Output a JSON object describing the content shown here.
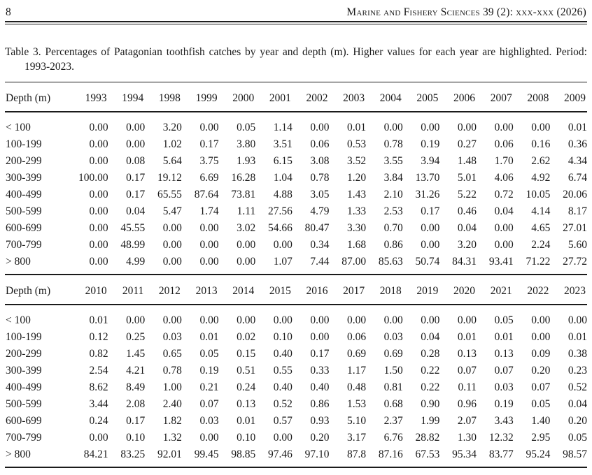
{
  "header": {
    "page_number": "8",
    "journal": "Marine and Fishery Sciences 39 (2): xxx-xxx (2026)"
  },
  "caption": {
    "line1": "Table 3. Percentages of Patagonian toothfish catches by year and depth (m). Higher values for each year are highlighted. Period:",
    "line2": "1993-2023."
  },
  "tables": [
    {
      "columns": [
        "Depth (m)",
        "1993",
        "1994",
        "1998",
        "1999",
        "2000",
        "2001",
        "2002",
        "2003",
        "2004",
        "2005",
        "2006",
        "2007",
        "2008",
        "2009"
      ],
      "rows": [
        {
          "label": "< 100",
          "values": [
            "0.00",
            "0.00",
            "3.20",
            "0.00",
            "0.05",
            "1.14",
            "0.00",
            "0.01",
            "0.00",
            "0.00",
            "0.00",
            "0.00",
            "0.00",
            "0.01"
          ]
        },
        {
          "label": "100-199",
          "values": [
            "0.00",
            "0.00",
            "1.02",
            "0.17",
            "3.80",
            "3.51",
            "0.06",
            "0.53",
            "0.78",
            "0.19",
            "0.27",
            "0.06",
            "0.16",
            "0.36"
          ]
        },
        {
          "label": "200-299",
          "values": [
            "0.00",
            "0.08",
            "5.64",
            "3.75",
            "1.93",
            "6.15",
            "3.08",
            "3.52",
            "3.55",
            "3.94",
            "1.48",
            "1.70",
            "2.62",
            "4.34"
          ]
        },
        {
          "label": "300-399",
          "values": [
            "100.00",
            "0.17",
            "19.12",
            "6.69",
            "16.28",
            "1.04",
            "0.78",
            "1.20",
            "3.84",
            "13.70",
            "5.01",
            "4.06",
            "4.92",
            "6.74"
          ]
        },
        {
          "label": "400-499",
          "values": [
            "0.00",
            "0.17",
            "65.55",
            "87.64",
            "73.81",
            "4.88",
            "3.05",
            "1.43",
            "2.10",
            "31.26",
            "5.22",
            "0.72",
            "10.05",
            "20.06"
          ]
        },
        {
          "label": "500-599",
          "values": [
            "0.00",
            "0.04",
            "5.47",
            "1.74",
            "1.11",
            "27.56",
            "4.79",
            "1.33",
            "2.53",
            "0.17",
            "0.46",
            "0.04",
            "4.14",
            "8.17"
          ]
        },
        {
          "label": "600-699",
          "values": [
            "0.00",
            "45.55",
            "0.00",
            "0.00",
            "3.02",
            "54.66",
            "80.47",
            "3.30",
            "0.70",
            "0.00",
            "0.04",
            "0.00",
            "4.65",
            "27.01"
          ]
        },
        {
          "label": "700-799",
          "values": [
            "0.00",
            "48.99",
            "0.00",
            "0.00",
            "0.00",
            "0.00",
            "0.34",
            "1.68",
            "0.86",
            "0.00",
            "3.20",
            "0.00",
            "2.24",
            "5.60"
          ]
        },
        {
          "label": "> 800",
          "values": [
            "0.00",
            "4.99",
            "0.00",
            "0.00",
            "0.00",
            "1.07",
            "7.44",
            "87.00",
            "85.63",
            "50.74",
            "84.31",
            "93.41",
            "71.22",
            "27.72"
          ]
        }
      ]
    },
    {
      "columns": [
        "Depth (m)",
        "2010",
        "2011",
        "2012",
        "2013",
        "2014",
        "2015",
        "2016",
        "2017",
        "2018",
        "2019",
        "2020",
        "2021",
        "2022",
        "2023"
      ],
      "rows": [
        {
          "label": "< 100",
          "values": [
            "0.01",
            "0.00",
            "0.00",
            "0.00",
            "0.00",
            "0.00",
            "0.00",
            "0.00",
            "0.00",
            "0.00",
            "0.00",
            "0.05",
            "0.00",
            "0.00"
          ]
        },
        {
          "label": "100-199",
          "values": [
            "0.12",
            "0.25",
            "0.03",
            "0.01",
            "0.02",
            "0.10",
            "0.00",
            "0.06",
            "0.03",
            "0.04",
            "0.01",
            "0.01",
            "0.00",
            "0.01"
          ]
        },
        {
          "label": "200-299",
          "values": [
            "0.82",
            "1.45",
            "0.65",
            "0.05",
            "0.15",
            "0.40",
            "0.17",
            "0.69",
            "0.69",
            "0.28",
            "0.13",
            "0.13",
            "0.09",
            "0.38"
          ]
        },
        {
          "label": "300-399",
          "values": [
            "2.54",
            "4.21",
            "0.78",
            "0.19",
            "0.51",
            "0.55",
            "0.33",
            "1.17",
            "1.50",
            "0.22",
            "0.07",
            "0.07",
            "0.20",
            "0.23"
          ]
        },
        {
          "label": "400-499",
          "values": [
            "8.62",
            "8.49",
            "1.00",
            "0.21",
            "0.24",
            "0.40",
            "0.40",
            "0.48",
            "0.81",
            "0.22",
            "0.11",
            "0.03",
            "0.07",
            "0.52"
          ]
        },
        {
          "label": "500-599",
          "values": [
            "3.44",
            "2.08",
            "2.40",
            "0.07",
            "0.13",
            "0.52",
            "0.86",
            "1.53",
            "0.68",
            "0.90",
            "0.96",
            "0.19",
            "0.05",
            "0.04"
          ]
        },
        {
          "label": "600-699",
          "values": [
            "0.24",
            "0.17",
            "1.82",
            "0.03",
            "0.01",
            "0.57",
            "0.93",
            "5.10",
            "2.37",
            "1.99",
            "2.07",
            "3.43",
            "1.40",
            "0.20"
          ]
        },
        {
          "label": "700-799",
          "values": [
            "0.00",
            "0.10",
            "1.32",
            "0.00",
            "0.10",
            "0.00",
            "0.20",
            "3.17",
            "6.76",
            "28.82",
            "1.30",
            "12.32",
            "2.95",
            "0.05"
          ]
        },
        {
          "label": "> 800",
          "values": [
            "84.21",
            "83.25",
            "92.01",
            "99.45",
            "98.85",
            "97.46",
            "97.10",
            "87.8",
            "87.16",
            "67.53",
            "95.34",
            "83.77",
            "95.24",
            "98.57"
          ]
        }
      ]
    }
  ]
}
